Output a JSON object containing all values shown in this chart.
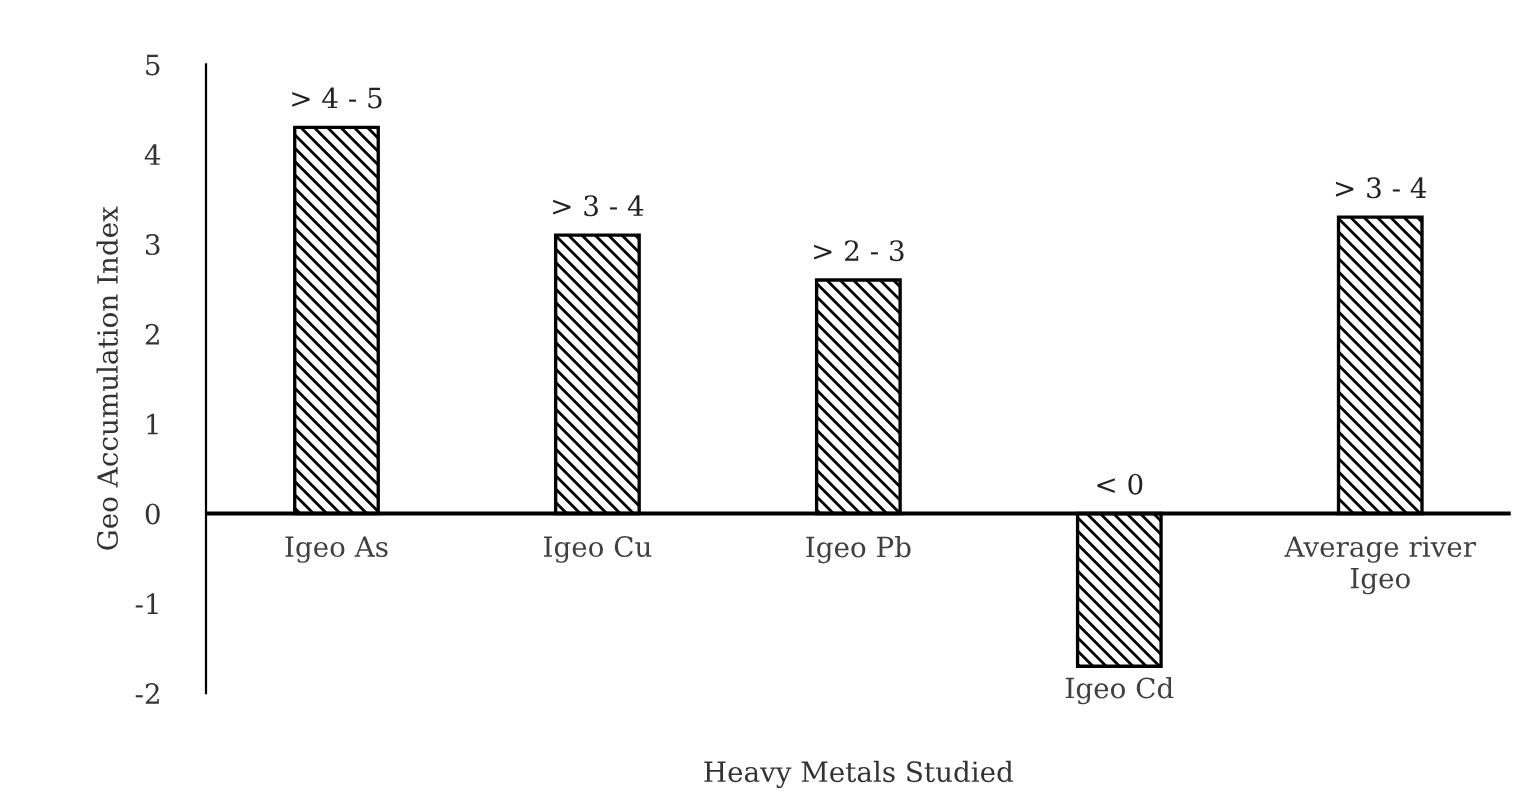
{
  "chart_data": {
    "type": "bar",
    "xlabel": "Heavy Metals Studied",
    "ylabel": "Geo Accumulation Index",
    "categories": [
      "Igeo As",
      "Igeo Cu",
      "Igeo Pb",
      "Igeo Cd",
      "Average river\nIgeo"
    ],
    "values": [
      4.3,
      3.1,
      2.6,
      -1.7,
      3.3
    ],
    "value_labels": [
      "> 4 - 5",
      "> 3 - 4",
      "> 2 - 3",
      "< 0",
      "> 3 - 4"
    ],
    "color": "#000000",
    "ylim": [
      -2,
      5
    ],
    "yticks": [
      -2,
      -1,
      0,
      1,
      2,
      3,
      4,
      5
    ],
    "grid": false,
    "legend": false
  }
}
